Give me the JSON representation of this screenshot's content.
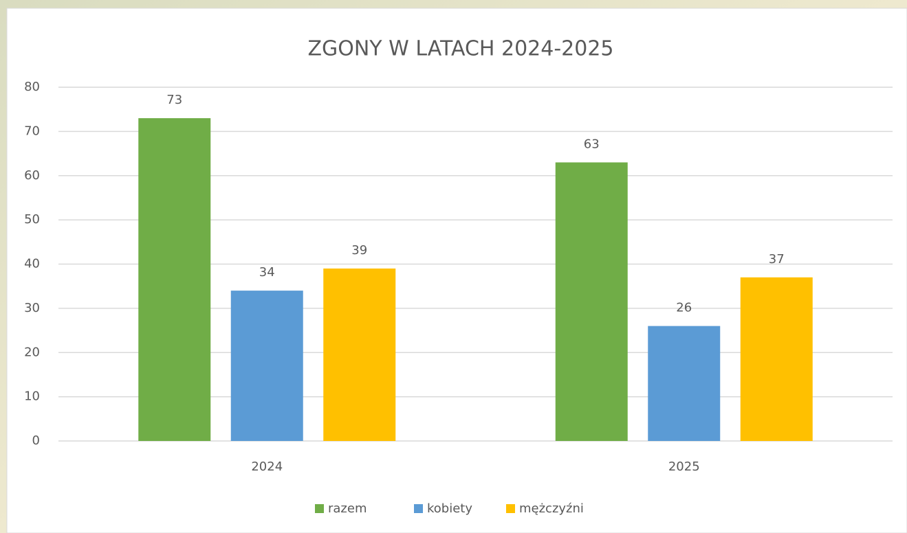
{
  "chart_data": {
    "type": "bar",
    "title": "ZGONY W LATACH 2024-2025",
    "categories": [
      "2024",
      "2025"
    ],
    "series": [
      {
        "name": "razem",
        "color": "#70ad47",
        "values": [
          73,
          63
        ]
      },
      {
        "name": "kobiety",
        "color": "#5b9bd5",
        "values": [
          34,
          26
        ]
      },
      {
        "name": "mężczyźni",
        "color": "#ffc000",
        "values": [
          39,
          37
        ]
      }
    ],
    "ylim": [
      0,
      80
    ],
    "yticks": [
      0,
      10,
      20,
      30,
      40,
      50,
      60,
      70,
      80
    ],
    "grid": true,
    "legend": "bottom"
  }
}
